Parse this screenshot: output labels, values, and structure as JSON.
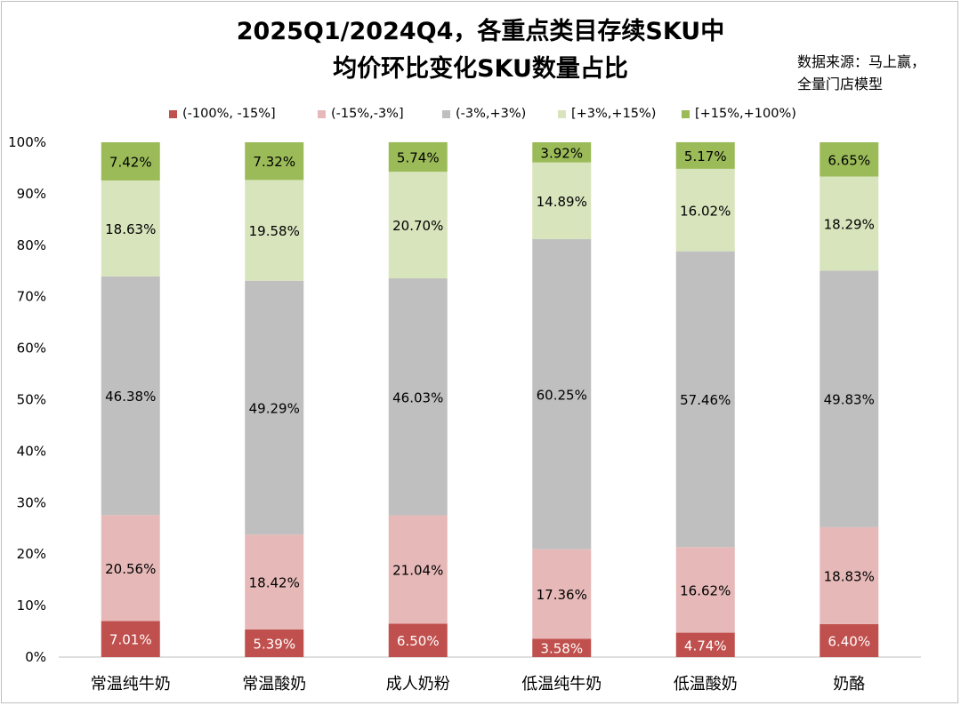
{
  "chart_data": {
    "type": "bar",
    "stacked": true,
    "title": [
      "2025Q1/2024Q4，各重点类目存续SKU中",
      "均价环比变化SKU数量占比"
    ],
    "source": [
      "数据来源：马上赢，",
      "全量门店模型"
    ],
    "categories": [
      "常温纯牛奶",
      "常温酸奶",
      "成人奶粉",
      "低温纯牛奶",
      "低温酸奶",
      "奶酪"
    ],
    "ylim": [
      0,
      100
    ],
    "yticks": [
      "0%",
      "10%",
      "20%",
      "30%",
      "40%",
      "50%",
      "60%",
      "70%",
      "80%",
      "90%",
      "100%"
    ],
    "legend_position": "top",
    "series": [
      {
        "name": "(-100%, -15%]",
        "color": "#c0504d",
        "label_color": "#ffffff",
        "values": [
          7.01,
          5.39,
          6.5,
          3.58,
          4.74,
          6.4
        ],
        "labels": [
          "7.01%",
          "5.39%",
          "6.50%",
          "3.58%",
          "4.74%",
          "6.40%"
        ]
      },
      {
        "name": "(-15%,-3%]",
        "color": "#e6b9b8",
        "label_color": "#000000",
        "values": [
          20.56,
          18.42,
          21.04,
          17.36,
          16.62,
          18.83
        ],
        "labels": [
          "20.56%",
          "18.42%",
          "21.04%",
          "17.36%",
          "16.62%",
          "18.83%"
        ]
      },
      {
        "name": "(-3%,+3%)",
        "color": "#bfbfbf",
        "label_color": "#000000",
        "values": [
          46.38,
          49.29,
          46.03,
          60.25,
          57.46,
          49.83
        ],
        "labels": [
          "46.38%",
          "49.29%",
          "46.03%",
          "60.25%",
          "57.46%",
          "49.83%"
        ]
      },
      {
        "name": "[+3%,+15%)",
        "color": "#d8e4bc",
        "label_color": "#000000",
        "values": [
          18.63,
          19.58,
          20.7,
          14.89,
          16.02,
          18.29
        ],
        "labels": [
          "18.63%",
          "19.58%",
          "20.70%",
          "14.89%",
          "16.02%",
          "18.29%"
        ]
      },
      {
        "name": "[+15%,+100%)",
        "color": "#9bbb59",
        "label_color": "#000000",
        "values": [
          7.42,
          7.32,
          5.74,
          3.92,
          5.17,
          6.65
        ],
        "labels": [
          "7.42%",
          "7.32%",
          "5.74%",
          "3.92%",
          "5.17%",
          "6.65%"
        ]
      }
    ]
  }
}
